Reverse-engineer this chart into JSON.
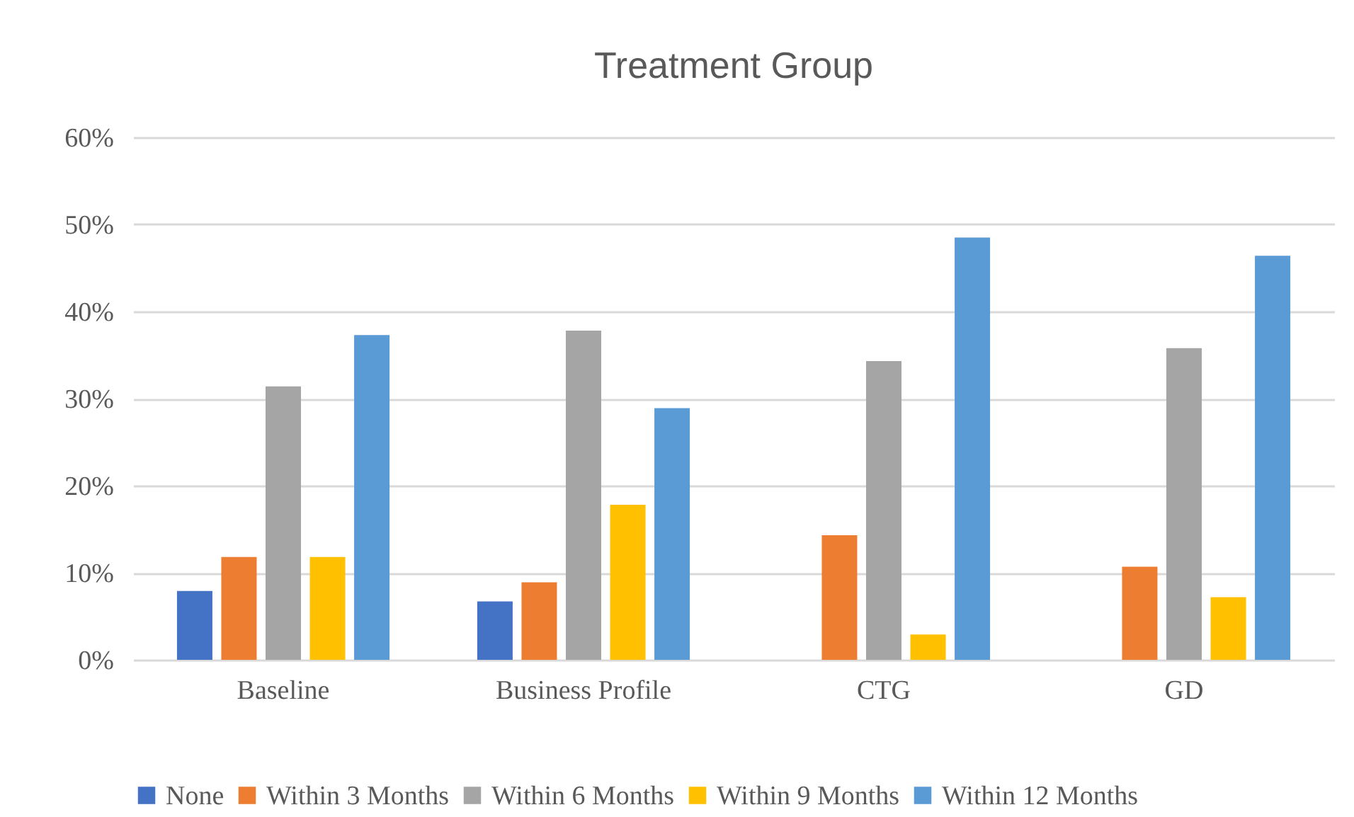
{
  "chart_data": {
    "type": "bar",
    "title": "Treatment Group",
    "categories": [
      "Baseline",
      "Business Profile",
      "CTG",
      "GD"
    ],
    "series": [
      {
        "name": "None",
        "color": "#4472c4",
        "values": [
          7.9,
          6.7,
          0,
          0
        ]
      },
      {
        "name": "Within 3 Months",
        "color": "#ed7d31",
        "values": [
          11.8,
          8.9,
          14.3,
          10.7
        ]
      },
      {
        "name": "Within 6 Months",
        "color": "#a5a5a5",
        "values": [
          31.4,
          37.8,
          34.3,
          35.8
        ]
      },
      {
        "name": "Within 9 Months",
        "color": "#ffc000",
        "values": [
          11.8,
          17.8,
          2.9,
          7.2
        ]
      },
      {
        "name": "Within 12 Months",
        "color": "#5b9bd5",
        "values": [
          37.3,
          28.9,
          48.5,
          46.4
        ]
      }
    ],
    "ylim": [
      0,
      60
    ],
    "yticks": [
      {
        "value": 0,
        "label": "0%"
      },
      {
        "value": 10,
        "label": "10%"
      },
      {
        "value": 20,
        "label": "20%"
      },
      {
        "value": 30,
        "label": "30%"
      },
      {
        "value": 40,
        "label": "40%"
      },
      {
        "value": 50,
        "label": "50%"
      },
      {
        "value": 60,
        "label": "60%"
      }
    ],
    "grid": "y",
    "legend": "bottom"
  }
}
